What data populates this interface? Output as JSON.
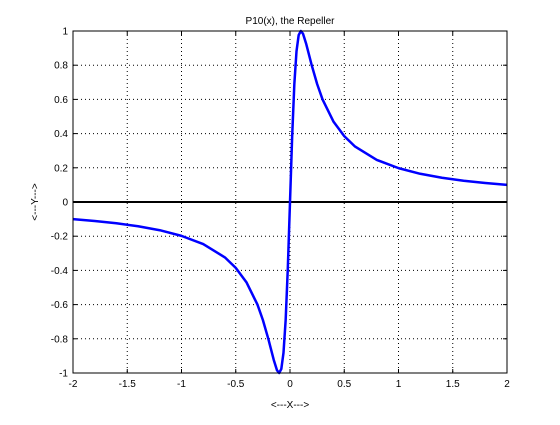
{
  "chart_data": {
    "type": "line",
    "title": "P10(x), the Repeller",
    "xlabel": "<---X--->",
    "ylabel": "<---Y--->",
    "xlim": [
      -2,
      2
    ],
    "ylim": [
      -1,
      1
    ],
    "grid": true,
    "x_ticks": [
      -2,
      -1.5,
      -1,
      -0.5,
      0,
      0.5,
      1,
      1.5,
      2
    ],
    "x_tick_labels": [
      "-2",
      "-1.5",
      "-1",
      "-0.5",
      "0",
      "0.5",
      "1",
      "1.5",
      "2"
    ],
    "y_ticks": [
      -1,
      -0.8,
      -0.6,
      -0.4,
      -0.2,
      0,
      0.2,
      0.4,
      0.6,
      0.8,
      1
    ],
    "y_tick_labels": [
      "-1",
      "-0.8",
      "-0.6",
      "-0.4",
      "-0.2",
      "0",
      "0.2",
      "0.4",
      "0.6",
      "0.8",
      "1"
    ],
    "series": [
      {
        "color": "#0000ff",
        "x": [
          -2,
          -1.8,
          -1.6,
          -1.4,
          -1.2,
          -1,
          -0.8,
          -0.6,
          -0.5,
          -0.4,
          -0.3,
          -0.25,
          -0.2,
          -0.15,
          -0.12,
          -0.1,
          -0.08,
          -0.06,
          -0.04,
          -0.02,
          0,
          0.02,
          0.04,
          0.06,
          0.08,
          0.1,
          0.12,
          0.15,
          0.2,
          0.25,
          0.3,
          0.4,
          0.5,
          0.6,
          0.8,
          1,
          1.2,
          1.4,
          1.6,
          1.8,
          2
        ],
        "y": [
          -0.1,
          -0.111,
          -0.124,
          -0.142,
          -0.165,
          -0.198,
          -0.246,
          -0.324,
          -0.385,
          -0.471,
          -0.6,
          -0.69,
          -0.8,
          -0.923,
          -0.984,
          -1.0,
          -0.976,
          -0.882,
          -0.69,
          -0.385,
          0,
          0.385,
          0.69,
          0.882,
          0.976,
          1.0,
          0.984,
          0.923,
          0.8,
          0.69,
          0.6,
          0.471,
          0.385,
          0.324,
          0.246,
          0.198,
          0.165,
          0.142,
          0.124,
          0.111,
          0.1
        ]
      }
    ],
    "zero_line": {
      "y": 0,
      "color": "#000000"
    }
  }
}
